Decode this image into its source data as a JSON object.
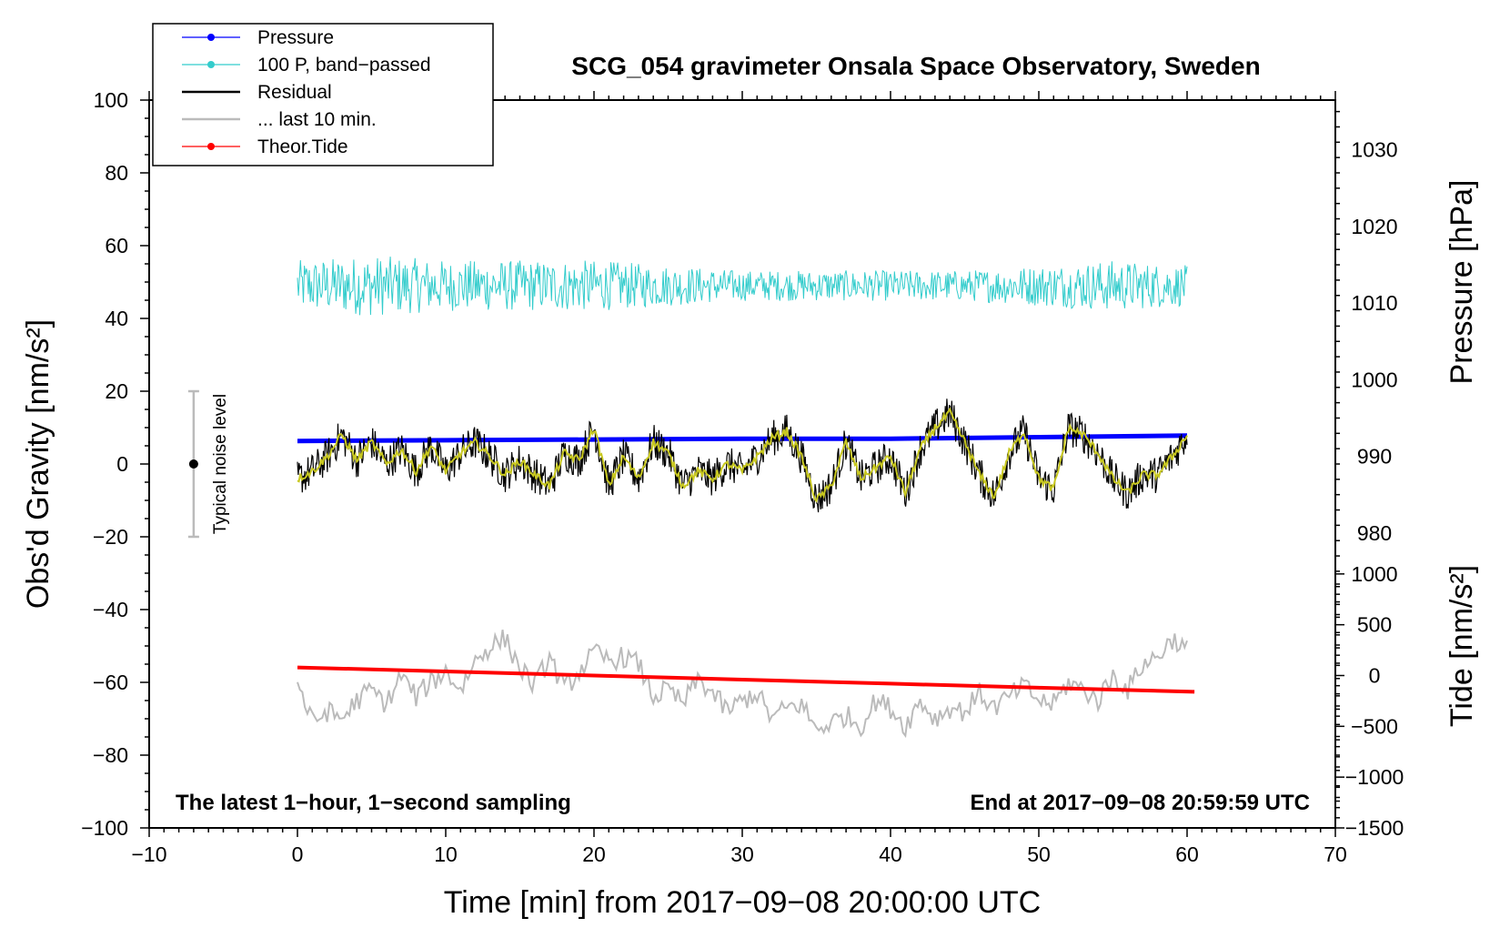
{
  "chart_data": {
    "type": "line",
    "title": "SCG_054 gravimeter Onsala Space Observatory, Sweden",
    "xlabel": "Time [min] from 2017−09−08 20:00:00 UTC",
    "ylabel_left": "Obs'd Gravity [nm/s²]",
    "ylabel_pressure": "Pressure [hPa]",
    "ylabel_tide": "Tide [nm/s²]",
    "xlim": [
      -10,
      70
    ],
    "ylim": [
      -100,
      100
    ],
    "x_ticks": [
      "−10",
      "0",
      "10",
      "20",
      "30",
      "40",
      "50",
      "60",
      "70"
    ],
    "y_ticks": [
      "100",
      "80",
      "60",
      "40",
      "20",
      "0",
      "−20",
      "−40",
      "−60",
      "−80",
      "−100"
    ],
    "pressure_axis": {
      "range": [
        941.5,
        1036.5
      ],
      "ticks": [
        "1030",
        "1020",
        "1010",
        "1000",
        "990",
        "980"
      ]
    },
    "tide_axis": {
      "range": [
        -1500,
        1500
      ],
      "ticks": [
        "1000",
        "500",
        "0",
        "−500",
        "−1000",
        "−1500"
      ]
    },
    "legend": [
      {
        "label": "Pressure",
        "color": "#0000ff",
        "marker": true
      },
      {
        "label": "100 P, band−passed",
        "color": "#33cccc",
        "marker": true
      },
      {
        "label": "Residual",
        "color": "#000000",
        "marker": false
      },
      {
        "label": "... last 10 min.",
        "color": "#bbbbbb",
        "marker": false
      },
      {
        "label": "Theor.Tide",
        "color": "#ff0000",
        "marker": true
      }
    ],
    "annotations": {
      "bottom_left": "The latest 1−hour, 1−second sampling",
      "bottom_right": "End at 2017−09−08 20:59:59 UTC",
      "noise_label": "Typical noise level"
    },
    "noise_bar": {
      "x": -7,
      "center": 0,
      "low": -20,
      "high": 20
    },
    "series": [
      {
        "name": "Pressure",
        "axis": "pressure",
        "color": "#0000ff",
        "x": [
          0,
          10,
          20,
          30,
          40,
          50,
          60
        ],
        "values": [
          992.0,
          992.1,
          992.2,
          992.3,
          992.3,
          992.5,
          992.7
        ]
      },
      {
        "name": "100 P, band-passed",
        "axis": "left",
        "color": "#33cccc",
        "center": 49,
        "x": [
          0,
          5,
          10,
          15,
          20,
          25,
          30,
          35,
          40,
          45,
          50,
          55,
          60
        ],
        "amplitude": [
          5,
          6,
          5,
          5,
          5,
          4,
          3,
          3,
          3,
          3,
          4,
          5,
          4
        ]
      },
      {
        "name": "Residual",
        "axis": "left",
        "color": "#000000",
        "smooth_color": "#c8c820",
        "x": [
          0,
          1,
          2,
          3,
          4,
          5,
          6,
          7,
          8,
          9,
          10,
          11,
          12,
          13,
          14,
          15,
          16,
          17,
          18,
          19,
          20,
          21,
          22,
          23,
          24,
          25,
          26,
          27,
          28,
          29,
          30,
          31,
          32,
          33,
          34,
          35,
          36,
          37,
          38,
          39,
          40,
          41,
          42,
          43,
          44,
          45,
          46,
          47,
          48,
          49,
          50,
          51,
          52,
          53,
          54,
          55,
          56,
          57,
          58,
          59,
          60
        ],
        "values": [
          -4,
          -2,
          2,
          8,
          1,
          6,
          0,
          4,
          -2,
          5,
          -2,
          3,
          6,
          2,
          -3,
          1,
          -3,
          -6,
          3,
          1,
          10,
          -6,
          2,
          -4,
          6,
          3,
          -6,
          -2,
          -4,
          0,
          -2,
          2,
          7,
          9,
          2,
          -10,
          -6,
          6,
          -4,
          -1,
          2,
          -8,
          4,
          10,
          14,
          6,
          -3,
          -9,
          3,
          9,
          -4,
          -7,
          10,
          8,
          3,
          -4,
          -8,
          -3,
          -3,
          2,
          8
        ]
      },
      {
        "name": "... last 10 min.",
        "axis": "left",
        "color": "#bbbbbb",
        "x": [
          0,
          1,
          2,
          3,
          4,
          5,
          6,
          7,
          8,
          9,
          10,
          11,
          12,
          13,
          14,
          15,
          16,
          17,
          18,
          19,
          20,
          21,
          22,
          23,
          24,
          25,
          26,
          27,
          28,
          29,
          30,
          31,
          32,
          33,
          34,
          35,
          36,
          37,
          38,
          39,
          40,
          41,
          42,
          43,
          44,
          45,
          46,
          47,
          48,
          49,
          50,
          51,
          52,
          53,
          54,
          55,
          56,
          57,
          58,
          59,
          60
        ],
        "values": [
          -60,
          -71,
          -68,
          -70,
          -65,
          -62,
          -66,
          -58,
          -64,
          -60,
          -57,
          -62,
          -54,
          -50,
          -48,
          -56,
          -61,
          -53,
          -62,
          -57,
          -52,
          -54,
          -53,
          -55,
          -64,
          -62,
          -66,
          -59,
          -63,
          -68,
          -65,
          -63,
          -70,
          -67,
          -66,
          -73,
          -71,
          -69,
          -72,
          -65,
          -67,
          -72,
          -65,
          -70,
          -67,
          -68,
          -63,
          -67,
          -64,
          -61,
          -65,
          -66,
          -60,
          -62,
          -65,
          -58,
          -62,
          -55,
          -53,
          -48,
          -51
        ]
      },
      {
        "name": "Theor.Tide",
        "axis": "tide",
        "color": "#ff0000",
        "x": [
          0,
          10,
          20,
          30,
          40,
          50,
          60.5
        ],
        "values": [
          80,
          40,
          0,
          -40,
          -80,
          -120,
          -160
        ]
      }
    ]
  }
}
